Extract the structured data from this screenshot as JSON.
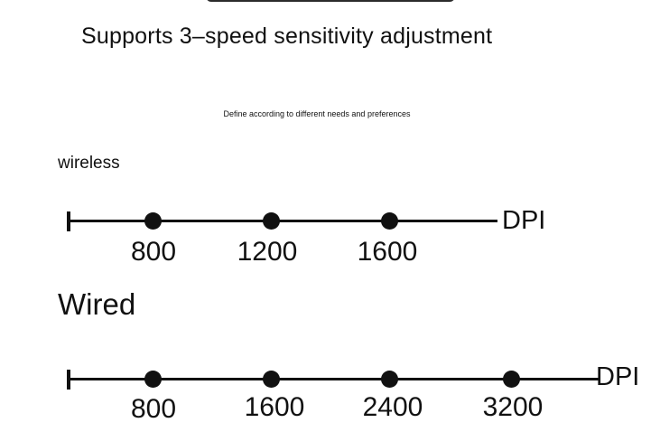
{
  "header": {
    "title": "Supports 3–speed sensitivity adjustment",
    "subtitle": "Define according to different needs and preferences"
  },
  "wireless": {
    "label": "wireless",
    "unit": "DPI",
    "levels": [
      "800",
      "1200",
      "1600"
    ]
  },
  "wired": {
    "label": "Wired",
    "unit": "DPI",
    "levels": [
      "800",
      "1600",
      "2400",
      "3200"
    ]
  }
}
